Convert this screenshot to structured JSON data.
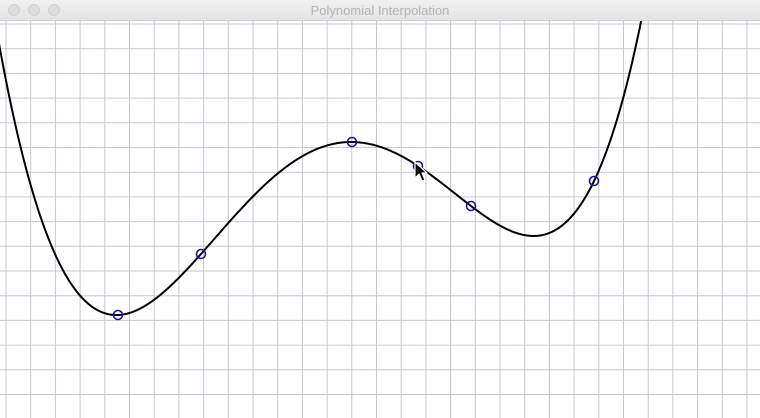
{
  "window": {
    "title": "Polynomial Interpolation",
    "buttons": [
      "close",
      "minimize",
      "zoom"
    ]
  },
  "colors": {
    "grid": "#c6c6d4",
    "curve": "#000000",
    "control_point": "#1414a0",
    "background": "#ffffff"
  },
  "icons": {
    "cursor": "arrow-pointer-icon"
  }
}
